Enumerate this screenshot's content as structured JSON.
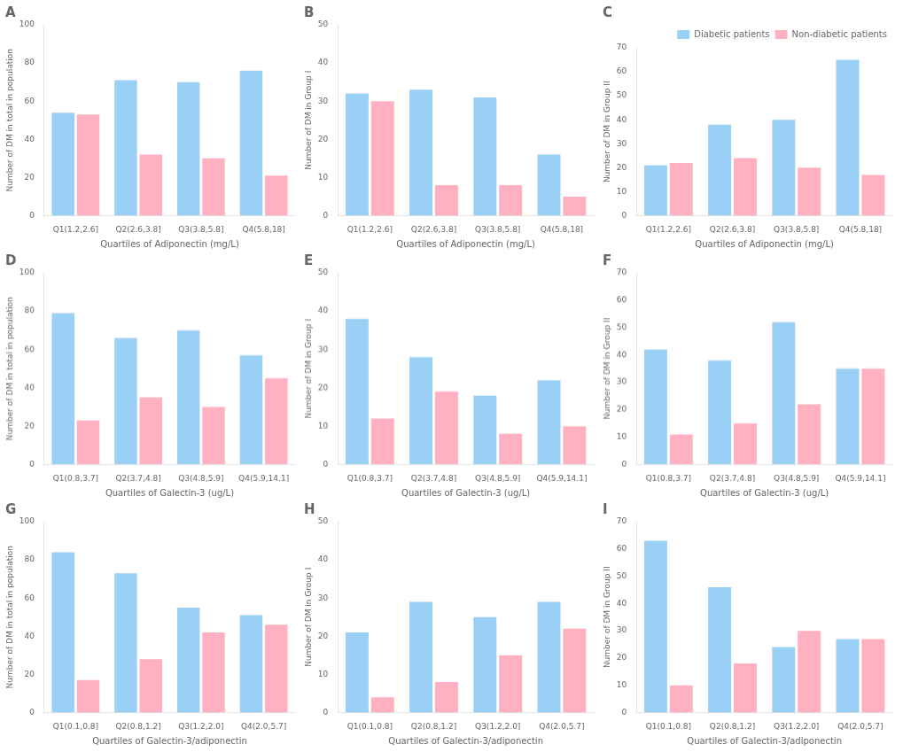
{
  "chart_data": [
    {
      "type": "bar",
      "title": "A",
      "ylabel": "Number of DM in total in population",
      "xlabel": "Quartiles of Adiponectin (mg/L)",
      "categories": [
        "Q1(1.2,2.6]",
        "Q2(2.6,3.8]",
        "Q3(3.8,5.8]",
        "Q4(5.8,18]"
      ],
      "series": [
        {
          "name": "Diabetic patients",
          "values": [
            54,
            71,
            70,
            76
          ]
        },
        {
          "name": "Non-diabetic patients",
          "values": [
            53,
            32,
            30,
            21
          ]
        }
      ],
      "ylim": [
        0,
        100
      ],
      "yticks": [
        0,
        20,
        40,
        60,
        80,
        100
      ],
      "grid": false
    },
    {
      "type": "bar",
      "title": "B",
      "ylabel": "Number of DM in Group I",
      "xlabel": "Quartiles of Adiponectin (mg/L)",
      "categories": [
        "Q1(1.2,2.6]",
        "Q2(2.6,3.8]",
        "Q3(3.8,5.8]",
        "Q4(5.8,18]"
      ],
      "series": [
        {
          "name": "Diabetic patients",
          "values": [
            32,
            33,
            31,
            16
          ]
        },
        {
          "name": "Non-diabetic patients",
          "values": [
            30,
            8,
            8,
            5
          ]
        }
      ],
      "ylim": [
        0,
        50
      ],
      "yticks": [
        0,
        10,
        20,
        30,
        40,
        50
      ],
      "grid": false
    },
    {
      "type": "bar",
      "title": "C",
      "ylabel": "Number of DM in Group II",
      "xlabel": "Quartiles of Adiponectin (mg/L)",
      "categories": [
        "Q1(1.2,2.6]",
        "Q2(2.6,3.8]",
        "Q3(3.8,5.8]",
        "Q4(5.8,18]"
      ],
      "series": [
        {
          "name": "Diabetic patients",
          "values": [
            21,
            38,
            40,
            65
          ]
        },
        {
          "name": "Non-diabetic patients",
          "values": [
            22,
            24,
            20,
            17
          ]
        }
      ],
      "ylim": [
        0,
        70
      ],
      "yticks": [
        0,
        10,
        20,
        30,
        40,
        50,
        60,
        70
      ],
      "grid": false,
      "legend": "upper right"
    },
    {
      "type": "bar",
      "title": "D",
      "ylabel": "Number of DM in total in population",
      "xlabel": "Quartiles of Galectin-3 (ug/L)",
      "categories": [
        "Q1(0.8,3.7]",
        "Q2(3.7,4.8]",
        "Q3(4.8,5.9]",
        "Q4(5.9,14.1]"
      ],
      "series": [
        {
          "name": "Diabetic patients",
          "values": [
            79,
            66,
            70,
            57
          ]
        },
        {
          "name": "Non-diabetic patients",
          "values": [
            23,
            35,
            30,
            45
          ]
        }
      ],
      "ylim": [
        0,
        100
      ],
      "yticks": [
        0,
        20,
        40,
        60,
        80,
        100
      ],
      "grid": false
    },
    {
      "type": "bar",
      "title": "E",
      "ylabel": "Number of DM in Group I",
      "xlabel": "Quartiles of Galectin-3 (ug/L)",
      "categories": [
        "Q1(0.8,3.7]",
        "Q2(3.7,4.8]",
        "Q3(4.8,5.9]",
        "Q4(5.9,14.1]"
      ],
      "series": [
        {
          "name": "Diabetic patients",
          "values": [
            38,
            28,
            18,
            22
          ]
        },
        {
          "name": "Non-diabetic patients",
          "values": [
            12,
            19,
            8,
            10
          ]
        }
      ],
      "ylim": [
        0,
        50
      ],
      "yticks": [
        0,
        10,
        20,
        30,
        40,
        50
      ],
      "grid": false
    },
    {
      "type": "bar",
      "title": "F",
      "ylabel": "Number of DM in Group II",
      "xlabel": "Quartiles of Galectin-3 (ug/L)",
      "categories": [
        "Q1(0.8,3.7]",
        "Q2(3.7,4.8]",
        "Q3(4.8,5.9]",
        "Q4(5.9,14.1]"
      ],
      "series": [
        {
          "name": "Diabetic patients",
          "values": [
            42,
            38,
            52,
            35
          ]
        },
        {
          "name": "Non-diabetic patients",
          "values": [
            11,
            15,
            22,
            35
          ]
        }
      ],
      "ylim": [
        0,
        70
      ],
      "yticks": [
        0,
        10,
        20,
        30,
        40,
        50,
        60,
        70
      ],
      "grid": false
    },
    {
      "type": "bar",
      "title": "G",
      "ylabel": "Number of DM in total in population",
      "xlabel": "Quartiles of Galectin-3/adiponectin",
      "categories": [
        "Q1(0.1,0.8]",
        "Q2(0.8,1.2]",
        "Q3(1.2,2.0]",
        "Q4(2.0,5.7]"
      ],
      "series": [
        {
          "name": "Diabetic patients",
          "values": [
            84,
            73,
            55,
            51
          ]
        },
        {
          "name": "Non-diabetic patients",
          "values": [
            17,
            28,
            42,
            46
          ]
        }
      ],
      "ylim": [
        0,
        100
      ],
      "yticks": [
        0,
        20,
        40,
        60,
        80,
        100
      ],
      "grid": false
    },
    {
      "type": "bar",
      "title": "H",
      "ylabel": "Number of DM in Group I",
      "xlabel": "Quartiles of Galectin-3/adiponectin",
      "categories": [
        "Q1(0.1,0.8]",
        "Q2(0.8,1.2]",
        "Q3(1.2,2.0]",
        "Q4(2.0,5.7]"
      ],
      "series": [
        {
          "name": "Diabetic patients",
          "values": [
            21,
            29,
            25,
            29
          ]
        },
        {
          "name": "Non-diabetic patients",
          "values": [
            4,
            8,
            15,
            22
          ]
        }
      ],
      "ylim": [
        0,
        50
      ],
      "yticks": [
        0,
        10,
        20,
        30,
        40,
        50
      ],
      "grid": false
    },
    {
      "type": "bar",
      "title": "I",
      "ylabel": "Number of DM in Group II",
      "xlabel": "Quartiles of Galectin-3/adiponectin",
      "categories": [
        "Q1(0.1,0.8]",
        "Q2(0.8,1.2]",
        "Q3(1.2,2.0]",
        "Q4(2.0,5.7]"
      ],
      "series": [
        {
          "name": "Diabetic patients",
          "values": [
            63,
            46,
            24,
            27
          ]
        },
        {
          "name": "Non-diabetic patients",
          "values": [
            10,
            18,
            30,
            27
          ]
        }
      ],
      "ylim": [
        0,
        70
      ],
      "yticks": [
        0,
        10,
        20,
        30,
        40,
        50,
        60,
        70
      ],
      "grid": false
    }
  ]
}
